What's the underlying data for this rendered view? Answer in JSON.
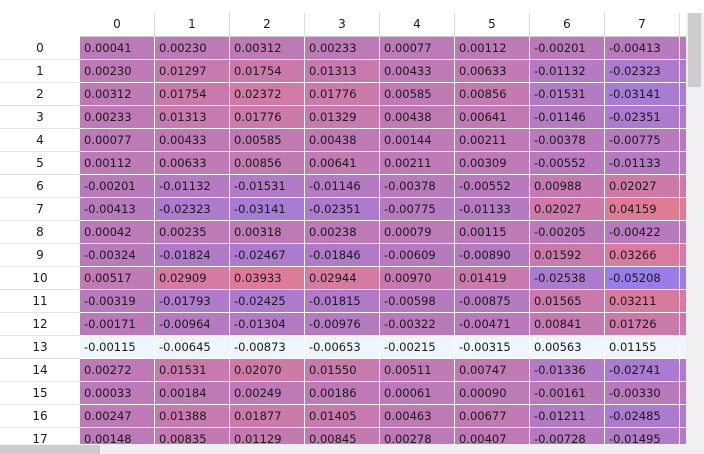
{
  "table": {
    "columns": [
      "0",
      "1",
      "2",
      "3",
      "4",
      "5",
      "6",
      "7"
    ],
    "selected_row": 13,
    "rows": [
      {
        "index": "0",
        "values": [
          "0.00041",
          "0.00230",
          "0.00312",
          "0.00233",
          "0.00077",
          "0.00112",
          "-0.00201",
          "-0.00413"
        ]
      },
      {
        "index": "1",
        "values": [
          "0.00230",
          "0.01297",
          "0.01754",
          "0.01313",
          "0.00433",
          "0.00633",
          "-0.01132",
          "-0.02323"
        ]
      },
      {
        "index": "2",
        "values": [
          "0.00312",
          "0.01754",
          "0.02372",
          "0.01776",
          "0.00585",
          "0.00856",
          "-0.01531",
          "-0.03141"
        ]
      },
      {
        "index": "3",
        "values": [
          "0.00233",
          "0.01313",
          "0.01776",
          "0.01329",
          "0.00438",
          "0.00641",
          "-0.01146",
          "-0.02351"
        ]
      },
      {
        "index": "4",
        "values": [
          "0.00077",
          "0.00433",
          "0.00585",
          "0.00438",
          "0.00144",
          "0.00211",
          "-0.00378",
          "-0.00775"
        ]
      },
      {
        "index": "5",
        "values": [
          "0.00112",
          "0.00633",
          "0.00856",
          "0.00641",
          "0.00211",
          "0.00309",
          "-0.00552",
          "-0.01133"
        ]
      },
      {
        "index": "6",
        "values": [
          "-0.00201",
          "-0.01132",
          "-0.01531",
          "-0.01146",
          "-0.00378",
          "-0.00552",
          "0.00988",
          "0.02027"
        ]
      },
      {
        "index": "7",
        "values": [
          "-0.00413",
          "-0.02323",
          "-0.03141",
          "-0.02351",
          "-0.00775",
          "-0.01133",
          "0.02027",
          "0.04159"
        ]
      },
      {
        "index": "8",
        "values": [
          "0.00042",
          "0.00235",
          "0.00318",
          "0.00238",
          "0.00079",
          "0.00115",
          "-0.00205",
          "-0.00422"
        ]
      },
      {
        "index": "9",
        "values": [
          "-0.00324",
          "-0.01824",
          "-0.02467",
          "-0.01846",
          "-0.00609",
          "-0.00890",
          "0.01592",
          "0.03266"
        ]
      },
      {
        "index": "10",
        "values": [
          "0.00517",
          "0.02909",
          "0.03933",
          "0.02944",
          "0.00970",
          "0.01419",
          "-0.02538",
          "-0.05208"
        ]
      },
      {
        "index": "11",
        "values": [
          "-0.00319",
          "-0.01793",
          "-0.02425",
          "-0.01815",
          "-0.00598",
          "-0.00875",
          "0.01565",
          "0.03211"
        ]
      },
      {
        "index": "12",
        "values": [
          "-0.00171",
          "-0.00964",
          "-0.01304",
          "-0.00976",
          "-0.00322",
          "-0.00471",
          "0.00841",
          "0.01726"
        ]
      },
      {
        "index": "13",
        "values": [
          "-0.00115",
          "-0.00645",
          "-0.00873",
          "-0.00653",
          "-0.00215",
          "-0.00315",
          "0.00563",
          "0.01155"
        ]
      },
      {
        "index": "14",
        "values": [
          "0.00272",
          "0.01531",
          "0.02070",
          "0.01550",
          "0.00511",
          "0.00747",
          "-0.01336",
          "-0.02741"
        ]
      },
      {
        "index": "15",
        "values": [
          "0.00033",
          "0.00184",
          "0.00249",
          "0.00186",
          "0.00061",
          "0.00090",
          "-0.00161",
          "-0.00330"
        ]
      },
      {
        "index": "16",
        "values": [
          "0.00247",
          "0.01388",
          "0.01877",
          "0.01405",
          "0.00463",
          "0.00677",
          "-0.01211",
          "-0.02485"
        ]
      },
      {
        "index": "17",
        "values": [
          "0.00148",
          "0.00835",
          "0.01129",
          "0.00845",
          "0.00278",
          "0.00407",
          "-0.00728",
          "-0.01495"
        ]
      }
    ]
  },
  "colors": {
    "heat_negative": "#9a7de8",
    "heat_neutral": "#bb7ab8",
    "heat_positive": "#e97b8e",
    "selected_row_bg": "#eef5fb",
    "scrollbar_track": "#f0f0f0",
    "scrollbar_thumb": "#cdcdcd"
  }
}
